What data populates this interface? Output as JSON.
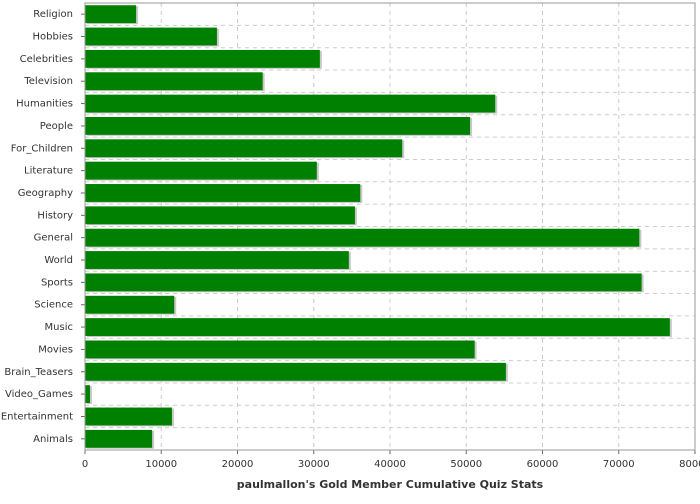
{
  "chart_data": {
    "type": "bar",
    "orientation": "horizontal",
    "xlabel": "paulmallon's Gold Member Cumulative Quiz Stats",
    "categories": [
      "Religion",
      "Hobbies",
      "Celebrities",
      "Television",
      "Humanities",
      "People",
      "For_Children",
      "Literature",
      "Geography",
      "History",
      "General",
      "World",
      "Sports",
      "Science",
      "Music",
      "Movies",
      "Brain_Teasers",
      "Video_Games",
      "Entertainment",
      "Animals"
    ],
    "values": [
      6700,
      17300,
      30800,
      23300,
      53800,
      50500,
      41600,
      30400,
      36100,
      35400,
      72700,
      34600,
      73000,
      11700,
      76700,
      51100,
      55200,
      650,
      11400,
      8800
    ],
    "color": "#008000",
    "xlim": [
      0,
      80000
    ],
    "xticks": [
      0,
      10000,
      20000,
      30000,
      40000,
      50000,
      60000,
      70000,
      80000
    ],
    "grid": true
  }
}
